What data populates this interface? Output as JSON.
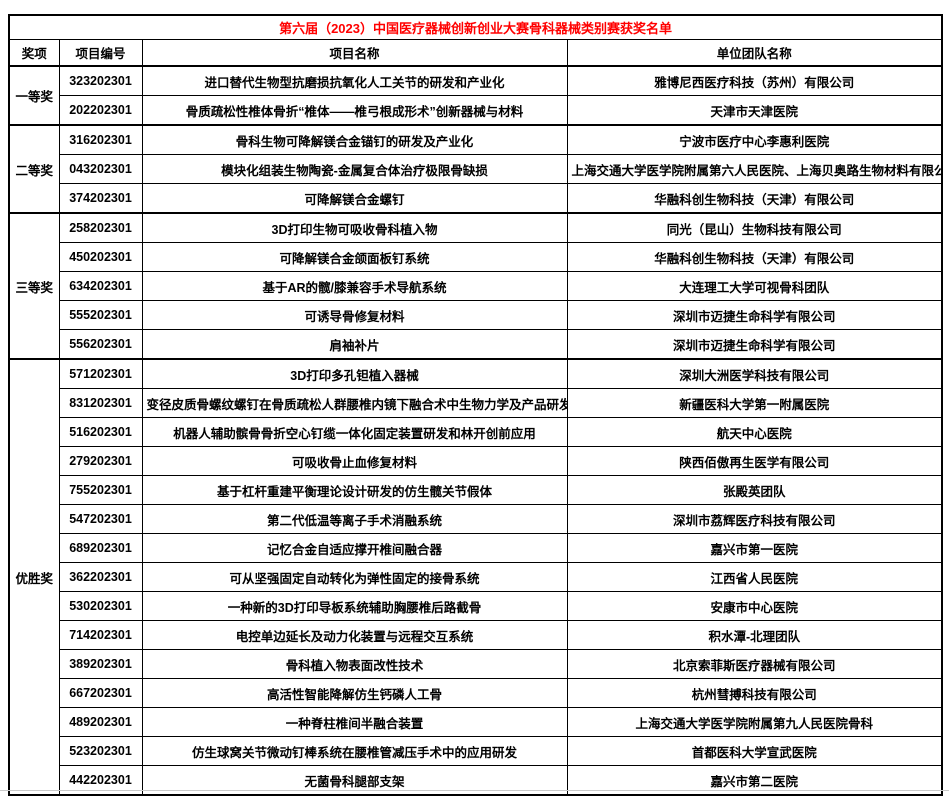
{
  "colors": {
    "title_color": "#ff0000",
    "border_color": "#000000",
    "text_color": "#000000",
    "background": "#ffffff"
  },
  "table": {
    "title": "第六届（2023）中国医疗器械创新创业大赛骨科器械类别赛获奖名单",
    "columns": [
      "奖项",
      "项目编号",
      "项目名称",
      "单位团队名称"
    ],
    "groups": [
      {
        "award": "一等奖",
        "rows": [
          [
            "323202301",
            "进口替代生物型抗磨损抗氧化人工关节的研发和产业化",
            "雅博尼西医疗科技（苏州）有限公司"
          ],
          [
            "202202301",
            "骨质疏松性椎体骨折“椎体——椎弓根成形术”创新器械与材料",
            "天津市天津医院"
          ]
        ]
      },
      {
        "award": "二等奖",
        "rows": [
          [
            "316202301",
            "骨科生物可降解镁合金锚钉的研发及产业化",
            "宁波市医疗中心李惠利医院"
          ],
          [
            "043202301",
            "模块化组装生物陶瓷-金属复合体治疗极限骨缺损",
            "上海交通大学医学院附属第六人民医院、上海贝奥路生物材料有限公司"
          ],
          [
            "374202301",
            "可降解镁合金螺钉",
            "华融科创生物科技（天津）有限公司"
          ]
        ]
      },
      {
        "award": "三等奖",
        "rows": [
          [
            "258202301",
            "3D打印生物可吸收骨科植入物",
            "同光（昆山）生物科技有限公司"
          ],
          [
            "450202301",
            "可降解镁合金颌面板钉系统",
            "华融科创生物科技（天津）有限公司"
          ],
          [
            "634202301",
            "基于AR的髋/膝兼容手术导航系统",
            "大连理工大学可视骨科团队"
          ],
          [
            "555202301",
            "可诱导骨修复材料",
            "深圳市迈捷生命科学有限公司"
          ],
          [
            "556202301",
            "肩袖补片",
            "深圳市迈捷生命科学有限公司"
          ]
        ]
      },
      {
        "award": "优胜奖",
        "rows": [
          [
            "571202301",
            "3D打印多孔钽植入器械",
            "深圳大洲医学科技有限公司"
          ],
          [
            "831202301",
            "变径皮质骨螺纹螺钉在骨质疏松人群腰椎内镜下融合术中生物力学及产品研发",
            "新疆医科大学第一附属医院"
          ],
          [
            "516202301",
            "机器人辅助髌骨骨折空心钉缆一体化固定装置研发和林开创前应用",
            "航天中心医院"
          ],
          [
            "279202301",
            "可吸收骨止血修复材料",
            "陕西佰傲再生医学有限公司"
          ],
          [
            "755202301",
            "基于杠杆重建平衡理论设计研发的仿生髋关节假体",
            "张殿英团队"
          ],
          [
            "547202301",
            "第二代低温等离子手术消融系统",
            "深圳市荔辉医疗科技有限公司"
          ],
          [
            "689202301",
            "记忆合金自适应撑开椎间融合器",
            "嘉兴市第一医院"
          ],
          [
            "362202301",
            "可从坚强固定自动转化为弹性固定的接骨系统",
            "江西省人民医院"
          ],
          [
            "530202301",
            "一种新的3D打印导板系统辅助胸腰椎后路截骨",
            "安康市中心医院"
          ],
          [
            "714202301",
            "电控单边延长及动力化装置与远程交互系统",
            "积水潭-北理团队"
          ],
          [
            "389202301",
            "骨科植入物表面改性技术",
            "北京索菲斯医疗器械有限公司"
          ],
          [
            "667202301",
            "高活性智能降解仿生钙磷人工骨",
            "杭州彗搏科技有限公司"
          ],
          [
            "489202301",
            "一种脊柱椎间半融合装置",
            "上海交通大学医学院附属第九人民医院骨科"
          ],
          [
            "523202301",
            "仿生球窝关节微动钉棒系统在腰椎管减压手术中的应用研发",
            "首都医科大学宣武医院"
          ],
          [
            "442202301",
            "无菌骨科腿部支架",
            "嘉兴市第二医院"
          ]
        ]
      }
    ]
  }
}
